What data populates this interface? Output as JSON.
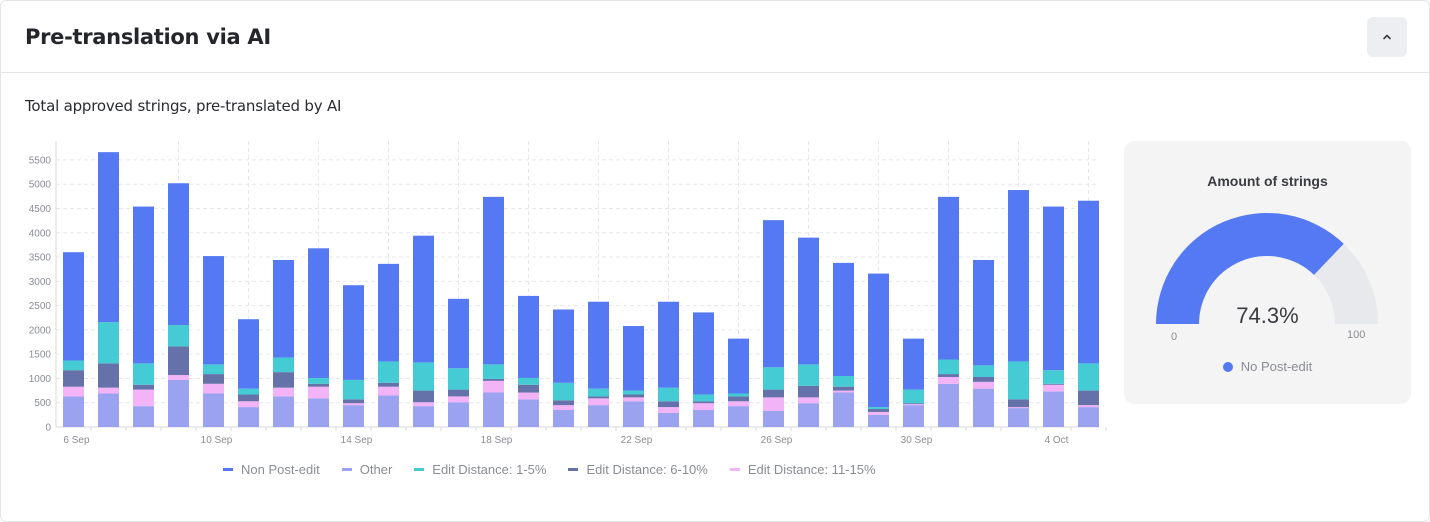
{
  "header": {
    "title": "Pre-translation via AI",
    "collapse_icon": "chevron-up-icon"
  },
  "section": {
    "subtitle": "Total approved strings, pre-translated by AI"
  },
  "chart_data": {
    "type": "bar",
    "stacked": true,
    "title": "",
    "xlabel": "",
    "ylabel": "",
    "ylim": [
      0,
      5890
    ],
    "yticks": [
      "0",
      "500",
      "1000",
      "1500",
      "2000",
      "2500",
      "3000",
      "3500",
      "4000",
      "4500",
      "5000",
      "5500"
    ],
    "grid": true,
    "legend_position": "bottom",
    "categories": [
      "6 Sep",
      "7 Sep",
      "8 Sep",
      "9 Sep",
      "10 Sep",
      "11 Sep",
      "12 Sep",
      "13 Sep",
      "14 Sep",
      "15 Sep",
      "16 Sep",
      "17 Sep",
      "18 Sep",
      "19 Sep",
      "20 Sep",
      "21 Sep",
      "22 Sep",
      "23 Sep",
      "24 Sep",
      "25 Sep",
      "26 Sep",
      "27 Sep",
      "28 Sep",
      "29 Sep",
      "30 Sep",
      "1 Oct",
      "2 Oct",
      "3 Oct",
      "4 Oct",
      "5 Oct"
    ],
    "xtick_labels": [
      "6 Sep",
      "10 Sep",
      "14 Sep",
      "18 Sep",
      "22 Sep",
      "26 Sep",
      "30 Sep",
      "4 Oct"
    ],
    "series": [
      {
        "name": "Other",
        "color": "#9ba3f0",
        "values": [
          630,
          690,
          430,
          970,
          690,
          410,
          630,
          590,
          450,
          650,
          430,
          510,
          710,
          570,
          350,
          450,
          530,
          290,
          350,
          430,
          330,
          490,
          710,
          250,
          450,
          890,
          790,
          390,
          730,
          410
        ]
      },
      {
        "name": "Edit Distance: 11-15%",
        "color": "#f2b3f7",
        "values": [
          200,
          120,
          340,
          100,
          200,
          120,
          180,
          240,
          40,
          180,
          80,
          120,
          240,
          140,
          100,
          140,
          80,
          120,
          140,
          100,
          280,
          120,
          40,
          60,
          20,
          140,
          140,
          20,
          140,
          40
        ]
      },
      {
        "name": "Edit Distance: 6-10%",
        "color": "#6572aa",
        "values": [
          340,
          500,
          100,
          590,
          200,
          140,
          320,
          60,
          80,
          80,
          240,
          140,
          40,
          160,
          100,
          40,
          60,
          120,
          40,
          100,
          160,
          240,
          80,
          60,
          20,
          60,
          100,
          160,
          20,
          300
        ]
      },
      {
        "name": "Edit Distance: 1-5%",
        "color": "#45cbd3",
        "values": [
          200,
          850,
          440,
          440,
          200,
          120,
          300,
          120,
          400,
          440,
          580,
          440,
          300,
          140,
          360,
          160,
          80,
          280,
          140,
          60,
          460,
          440,
          220,
          40,
          280,
          300,
          240,
          780,
          280,
          560
        ]
      },
      {
        "name": "Non Post-edit",
        "color": "#5479f2",
        "values": [
          2230,
          3500,
          3230,
          2920,
          2230,
          1430,
          2010,
          2670,
          1950,
          2010,
          2610,
          1430,
          3450,
          1690,
          1510,
          1790,
          1330,
          1770,
          1690,
          1130,
          3030,
          2610,
          2330,
          2750,
          1050,
          3350,
          2170,
          3530,
          3370,
          3350
        ]
      }
    ],
    "legend_order": [
      "Non Post-edit",
      "Other",
      "Edit Distance: 1-5%",
      "Edit Distance: 6-10%",
      "Edit Distance: 11-15%"
    ]
  },
  "gauge": {
    "title": "Amount of strings",
    "value_label": "74.3%",
    "value": 74.3,
    "min_label": "0",
    "max_label": "100",
    "legend_label": "No Post-edit",
    "color": "#5479f2",
    "track_color": "#e8e9ec"
  }
}
